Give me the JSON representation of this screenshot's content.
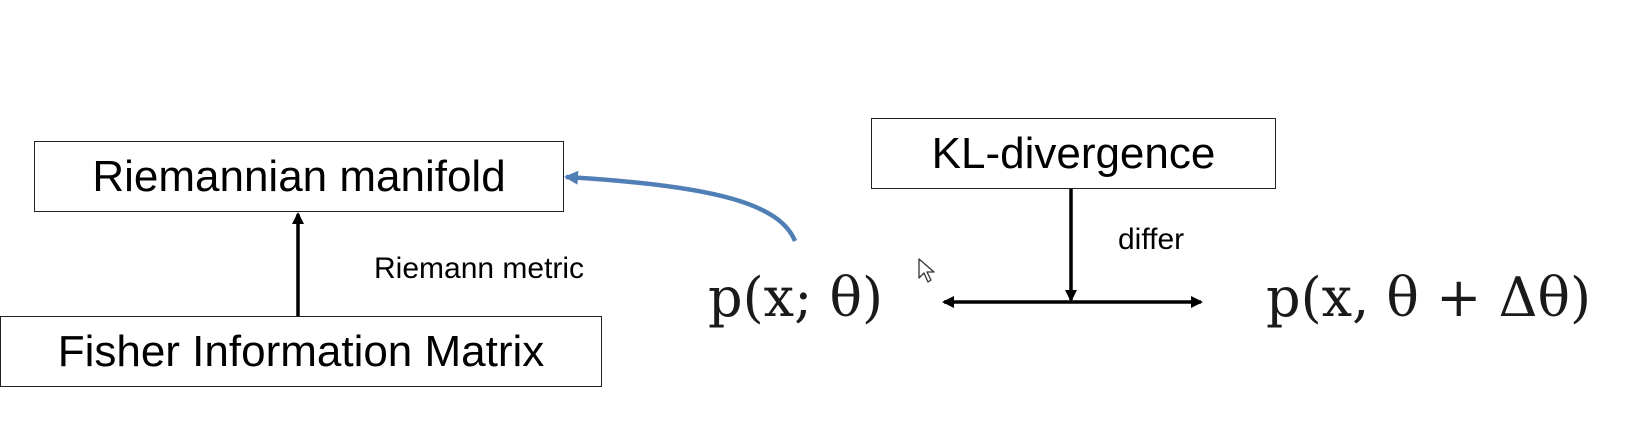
{
  "boxes": {
    "riemannian_manifold": "Riemannian manifold",
    "kl_divergence": "KL-divergence",
    "fisher_information_matrix": "Fisher Information Matrix"
  },
  "labels": {
    "riemann_metric": "Riemann metric",
    "differ": "differ"
  },
  "expressions": {
    "p_x_theta": "p(x; θ)",
    "p_x_theta_plus_delta": "p(x, θ + Δθ)"
  },
  "colors": {
    "curved_arrow": "#4f7fb5",
    "arrows": "#000000",
    "box_border": "#222222"
  },
  "icons": {
    "cursor": "mouse-pointer-icon"
  }
}
